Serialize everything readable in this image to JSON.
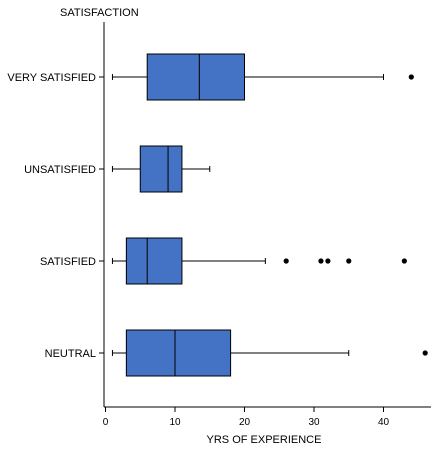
{
  "chart_data": {
    "type": "boxplot",
    "orientation": "horizontal",
    "title": "",
    "xlabel": "YRS OF EXPERIENCE",
    "ylabel": "SATISFACTION",
    "xlim": [
      0,
      47
    ],
    "xticks": [
      0,
      10,
      20,
      30,
      40
    ],
    "grid": false,
    "box_color": "#4472C4",
    "outline_color": "#000000",
    "categories": [
      "VERY SATISFIED",
      "UNSATISFIED",
      "SATISFIED",
      "NEUTRAL"
    ],
    "series": [
      {
        "category": "VERY SATISFIED",
        "whisker_low": 1,
        "q1": 6,
        "median": 13.5,
        "q3": 20,
        "whisker_high": 40,
        "outliers": [
          44
        ]
      },
      {
        "category": "UNSATISFIED",
        "whisker_low": 1,
        "q1": 5,
        "median": 9,
        "q3": 11,
        "whisker_high": 15,
        "outliers": []
      },
      {
        "category": "SATISFIED",
        "whisker_low": 1,
        "q1": 3,
        "median": 6,
        "q3": 11,
        "whisker_high": 23,
        "outliers": [
          26,
          31,
          32,
          35,
          43
        ]
      },
      {
        "category": "NEUTRAL",
        "whisker_low": 1,
        "q1": 3,
        "median": 10,
        "q3": 18,
        "whisker_high": 35,
        "outliers": [
          46
        ]
      }
    ]
  }
}
